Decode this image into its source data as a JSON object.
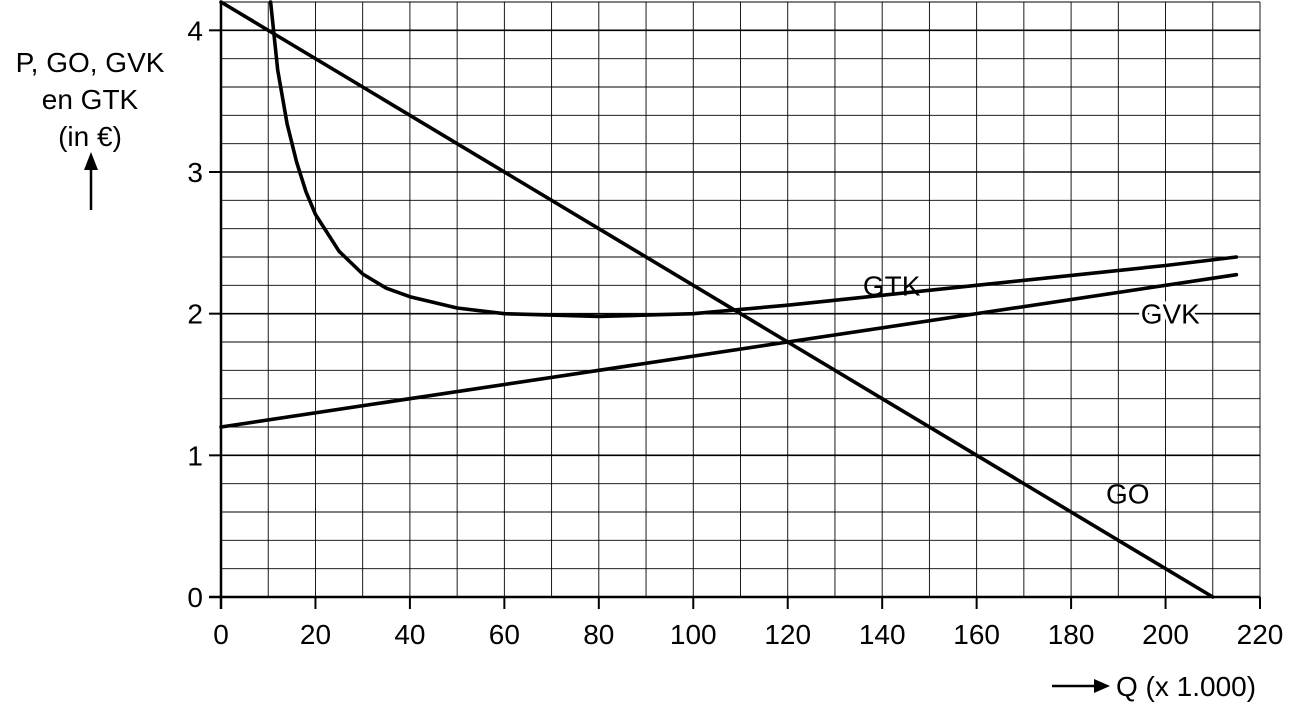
{
  "chart_data": {
    "type": "line",
    "ylabel_lines": [
      "P, GO, GVK",
      "en GTK",
      "(in €)"
    ],
    "xlabel": "Q (x 1.000)",
    "xlim": [
      0,
      220
    ],
    "ylim": [
      0,
      4.2
    ],
    "x_ticks": [
      0,
      20,
      40,
      60,
      80,
      100,
      120,
      140,
      160,
      180,
      200,
      220
    ],
    "y_ticks": [
      0,
      1,
      2,
      3,
      4
    ],
    "grid": true,
    "series": [
      {
        "name": "GO",
        "x": [
          0,
          210
        ],
        "y": [
          4.2,
          0
        ]
      },
      {
        "name": "GVK",
        "x": [
          0,
          215
        ],
        "y": [
          1.2,
          2.275
        ]
      },
      {
        "name": "GTK",
        "x": [
          10.5,
          12,
          14,
          16,
          18,
          20,
          25,
          30,
          35,
          40,
          50,
          60,
          70,
          80,
          90,
          100,
          110,
          120,
          140,
          160,
          180,
          200,
          215
        ],
        "y": [
          4.2,
          3.72,
          3.34,
          3.07,
          2.86,
          2.7,
          2.44,
          2.28,
          2.18,
          2.12,
          2.04,
          2.0,
          1.99,
          1.98,
          1.99,
          2.0,
          2.03,
          2.06,
          2.13,
          2.2,
          2.27,
          2.34,
          2.4
        ]
      }
    ]
  }
}
